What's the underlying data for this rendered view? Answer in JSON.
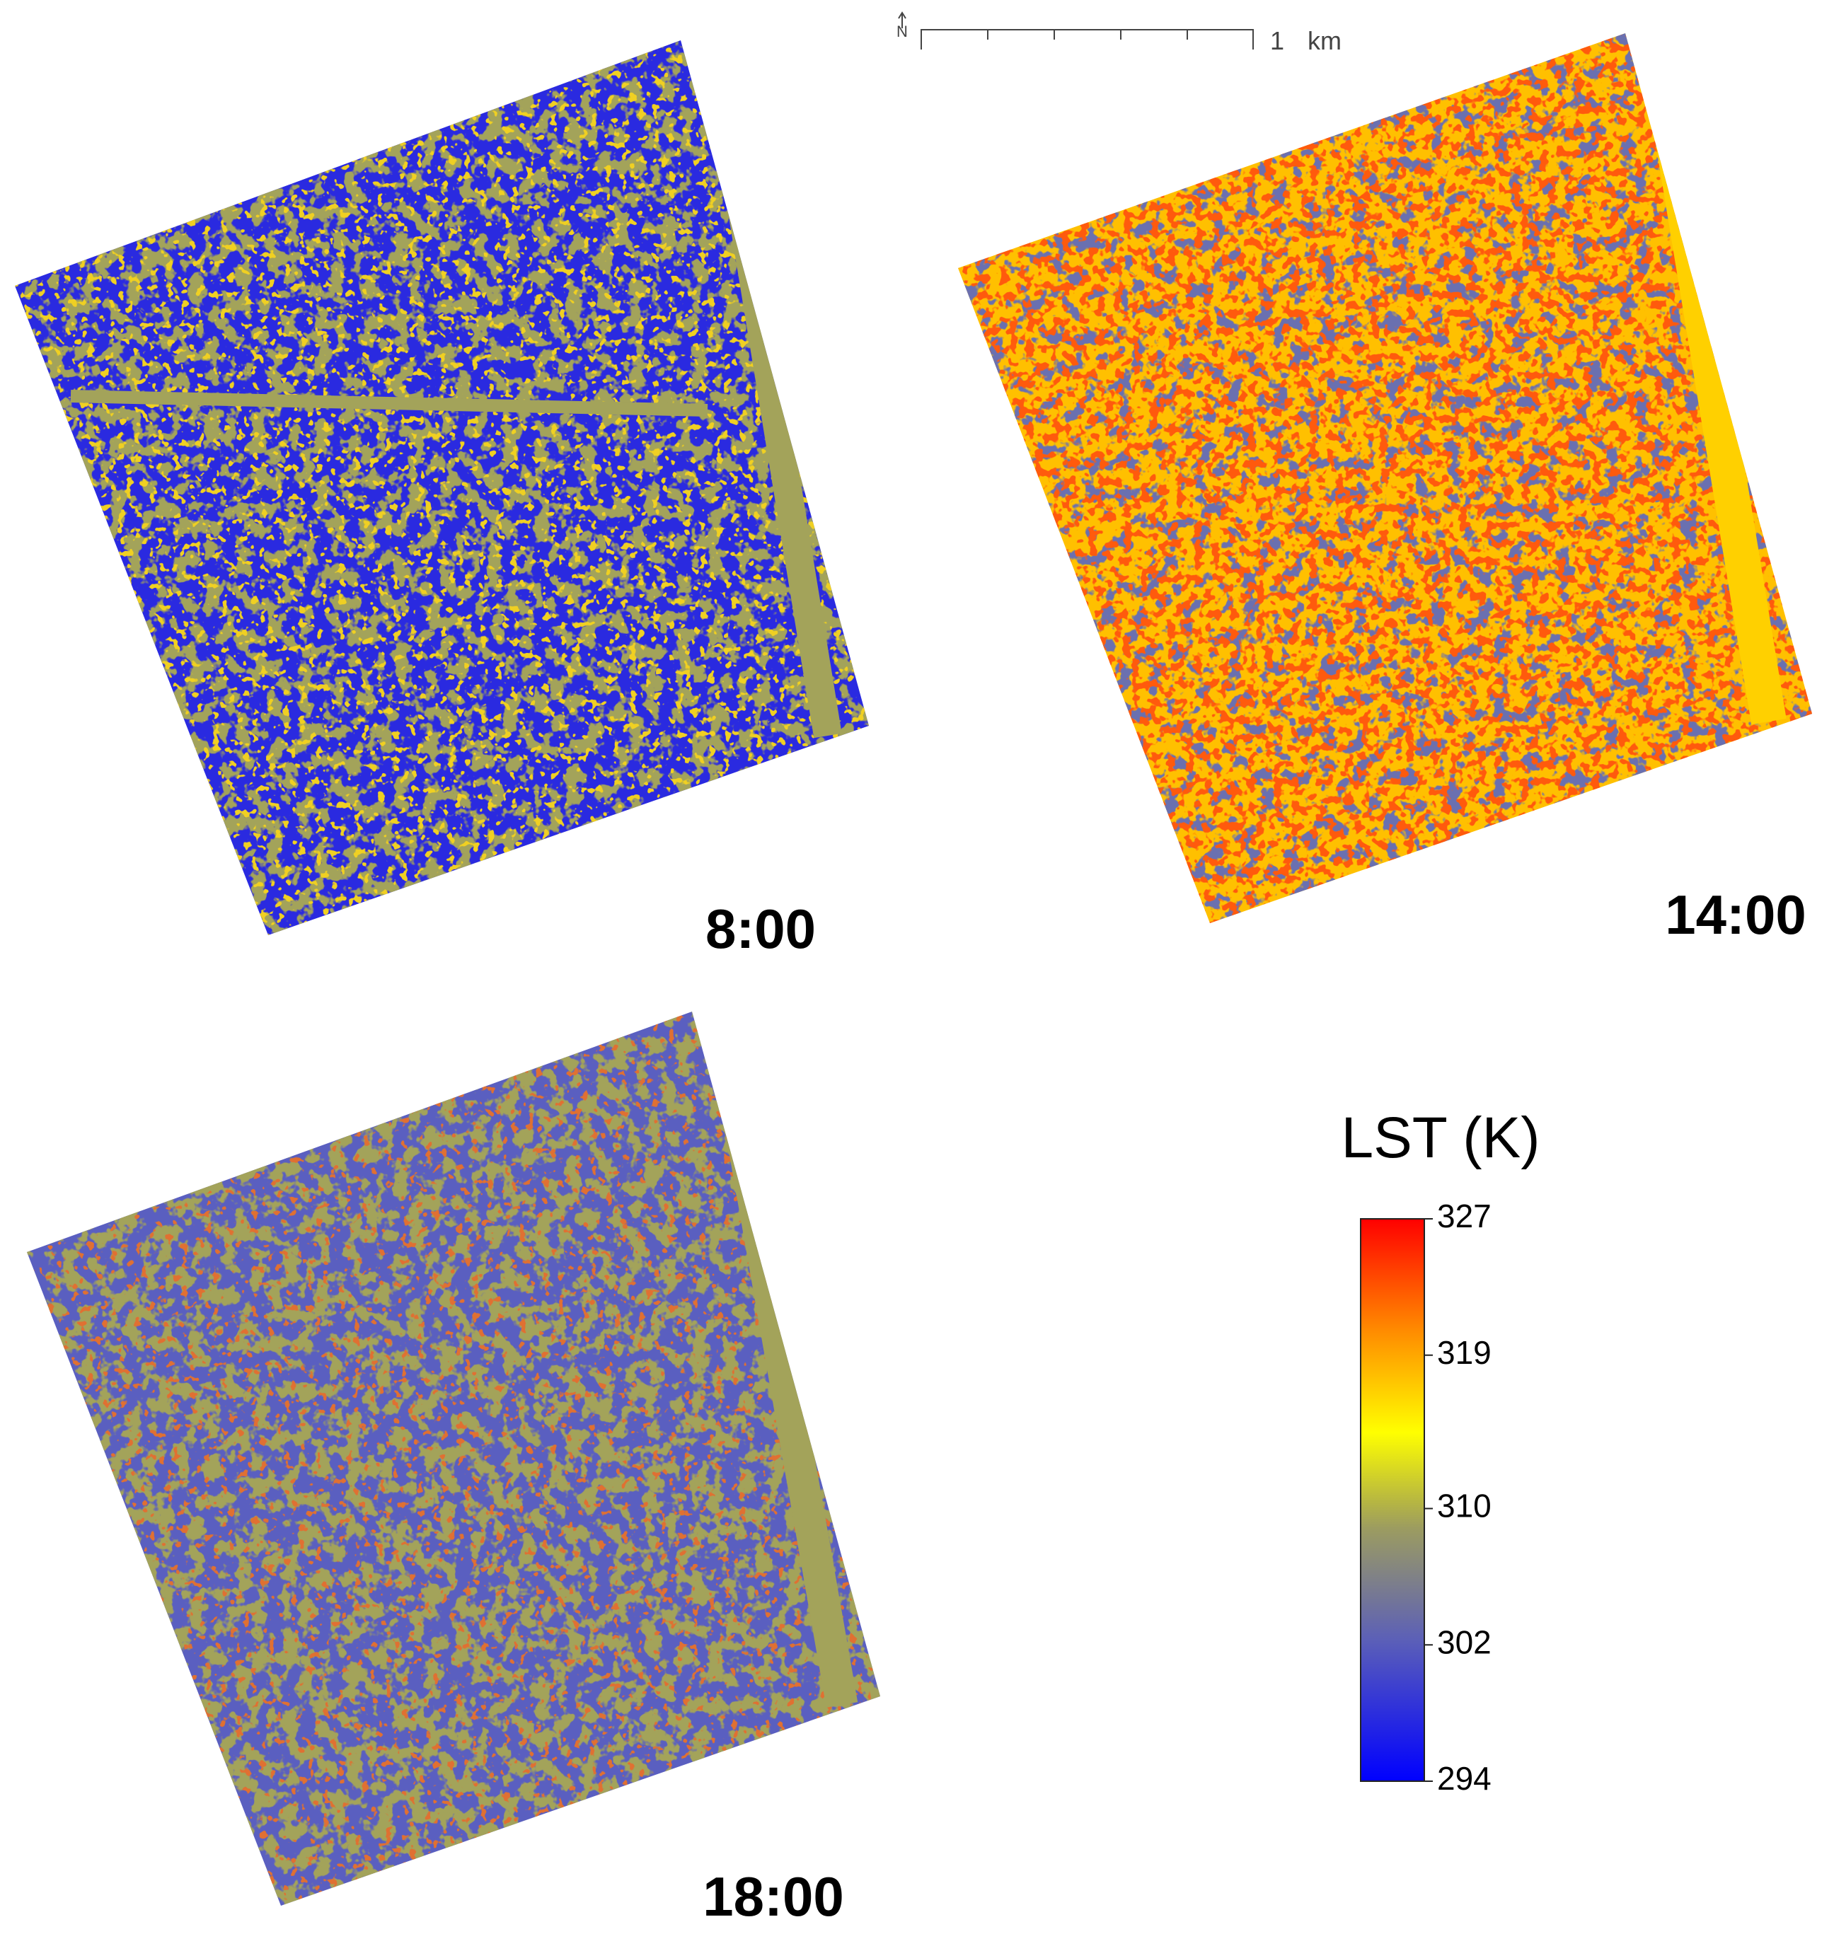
{
  "scale_bar": {
    "north": "N",
    "distance": "1",
    "unit": "km"
  },
  "maps": [
    {
      "label": "8:00"
    },
    {
      "label": "14:00"
    },
    {
      "label": "18:00"
    }
  ],
  "legend": {
    "title": "LST (K)",
    "range": [
      294,
      327
    ],
    "ticks": [
      327,
      319,
      310,
      302,
      294
    ]
  }
}
